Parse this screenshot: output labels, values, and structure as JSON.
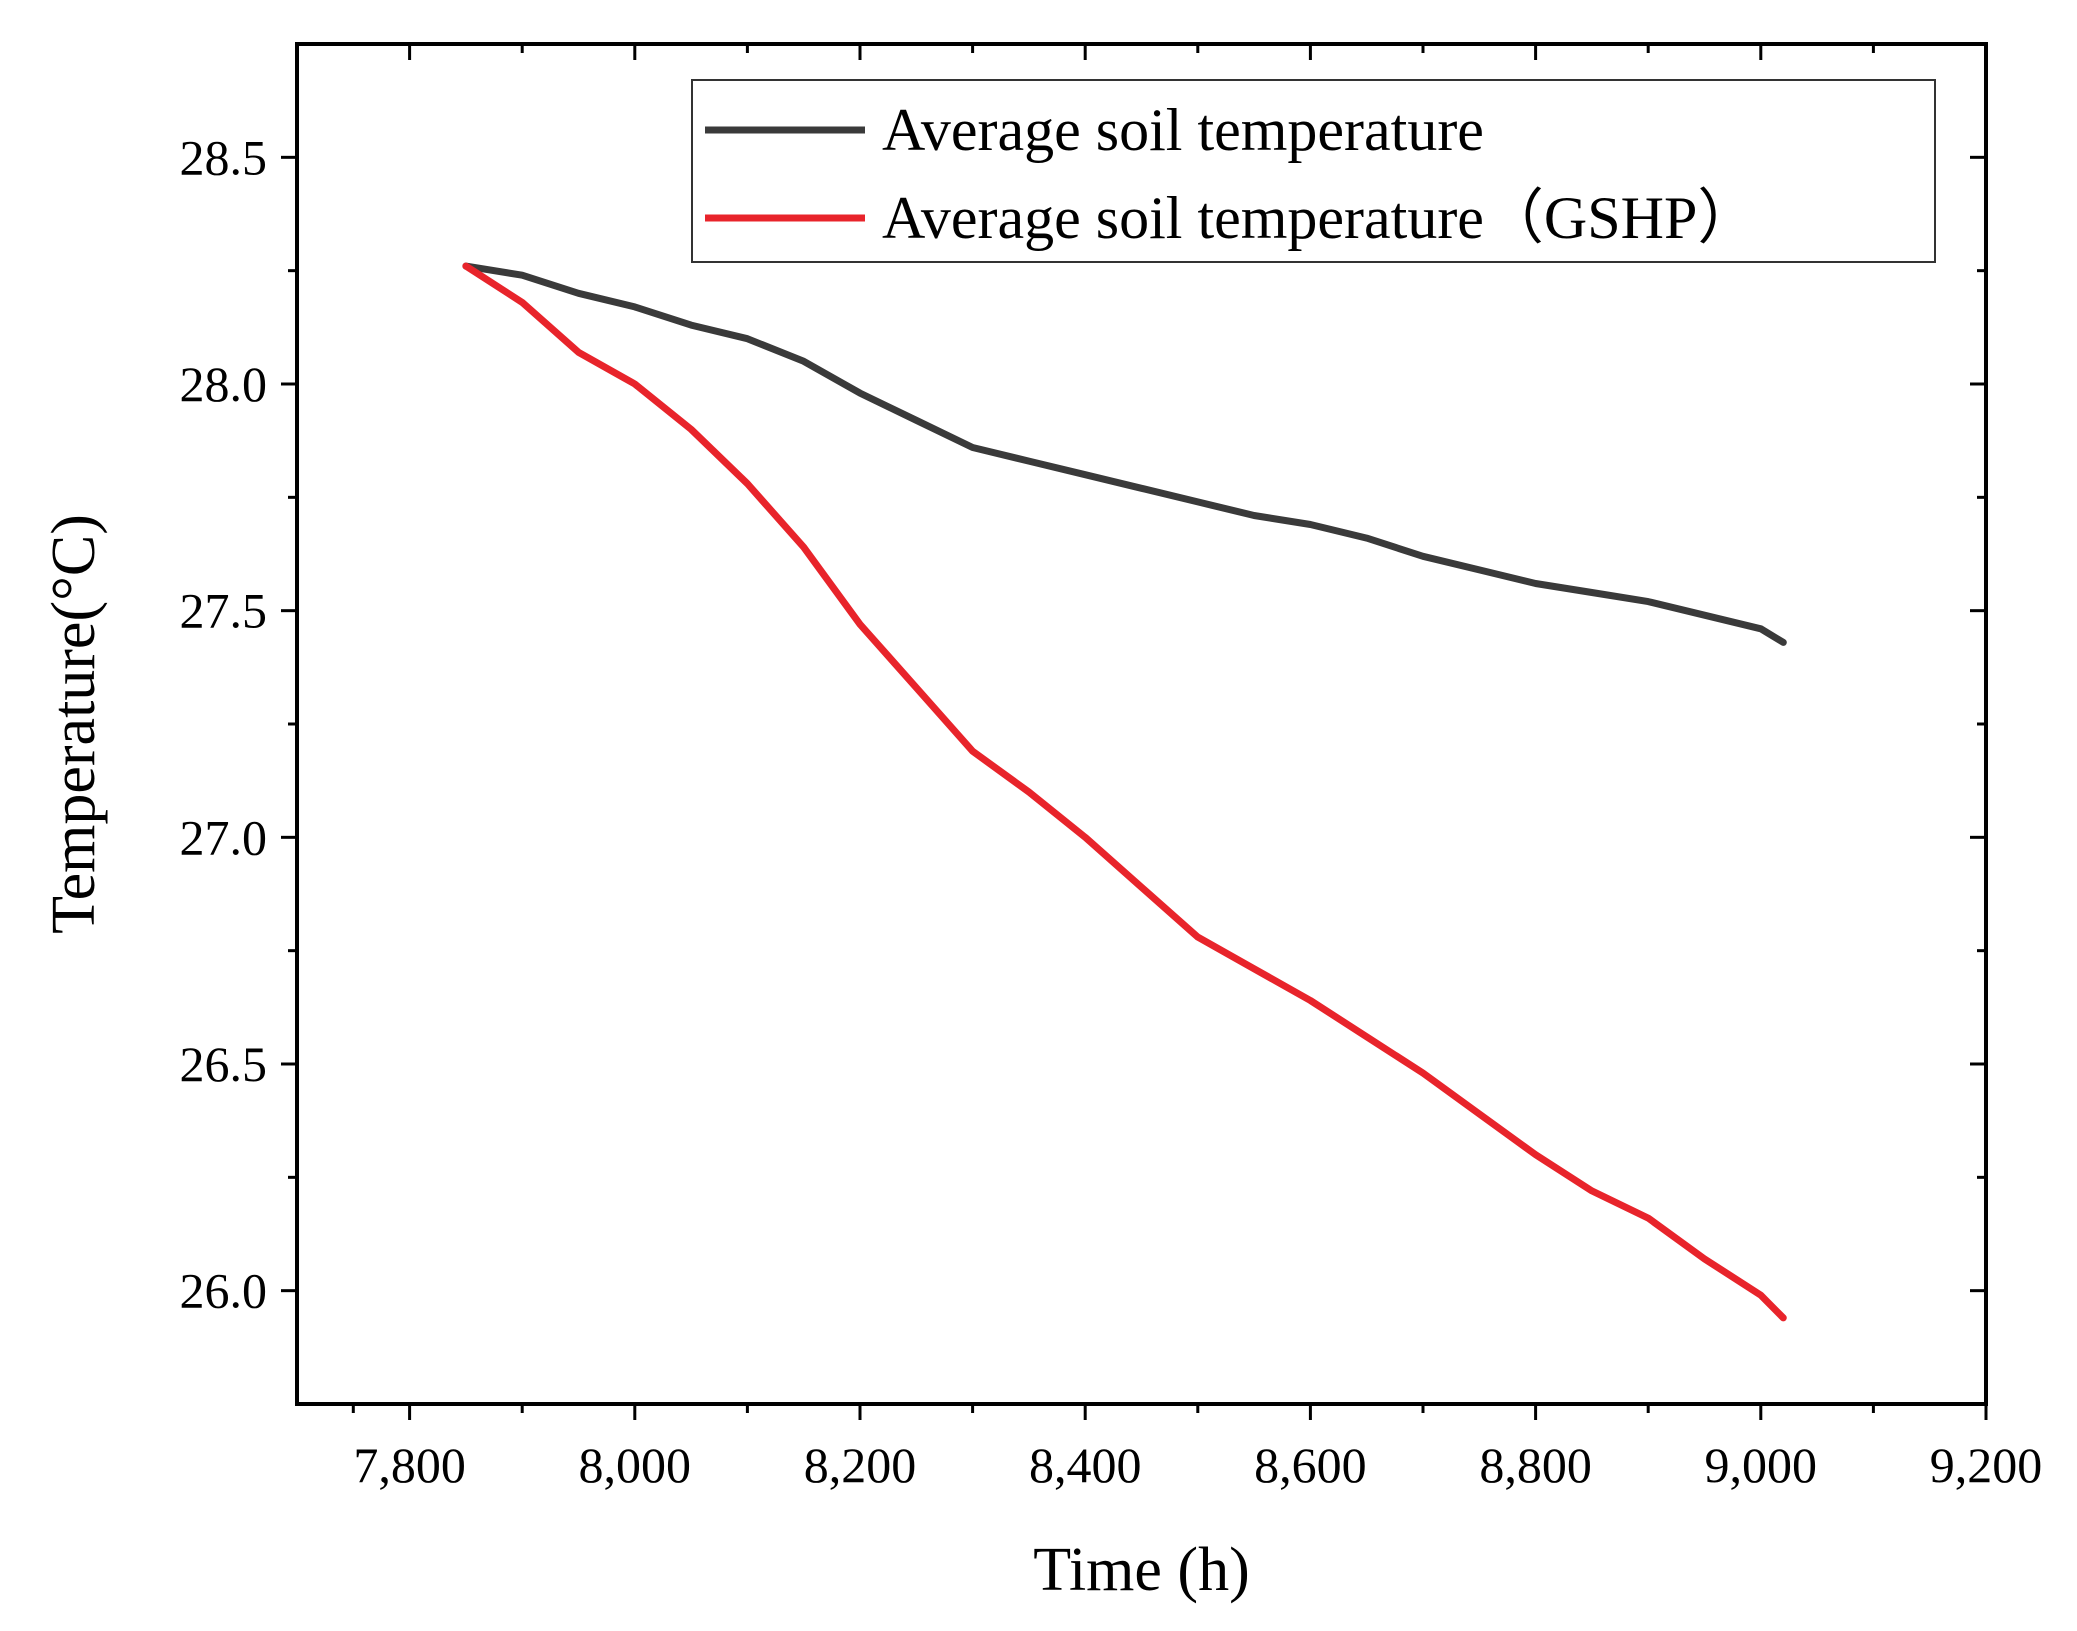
{
  "chart_data": {
    "type": "line",
    "title": "",
    "xlabel": "Time (h)",
    "ylabel": "Temperature(°C)",
    "xlim": [
      7700,
      9200
    ],
    "ylim": [
      25.75,
      28.75
    ],
    "xticks": [
      7800,
      8000,
      8200,
      8400,
      8600,
      8800,
      9000,
      9200
    ],
    "xtick_labels": [
      "7,800",
      "8,000",
      "8,200",
      "8,400",
      "8,600",
      "8,800",
      "9,000",
      "9,200"
    ],
    "yticks": [
      26.0,
      26.5,
      27.0,
      27.5,
      28.0,
      28.5
    ],
    "ytick_labels": [
      "26.0",
      "26.5",
      "27.0",
      "27.5",
      "28.0",
      "28.5"
    ],
    "grid": false,
    "legend_position": "top-right",
    "series": [
      {
        "name": "Average soil temperature",
        "color": "#3a3a3a",
        "x": [
          7850,
          7900,
          7950,
          8000,
          8050,
          8100,
          8150,
          8200,
          8250,
          8300,
          8350,
          8400,
          8450,
          8500,
          8550,
          8600,
          8650,
          8700,
          8750,
          8800,
          8850,
          8900,
          8950,
          9000,
          9020
        ],
        "y": [
          28.26,
          28.24,
          28.2,
          28.17,
          28.13,
          28.1,
          28.05,
          27.98,
          27.92,
          27.86,
          27.83,
          27.8,
          27.77,
          27.74,
          27.71,
          27.69,
          27.66,
          27.62,
          27.59,
          27.56,
          27.54,
          27.52,
          27.49,
          27.46,
          27.43
        ]
      },
      {
        "name": "Average soil temperature（GSHP）",
        "color": "#e8242b",
        "x": [
          7850,
          7900,
          7950,
          8000,
          8050,
          8100,
          8150,
          8200,
          8250,
          8300,
          8350,
          8400,
          8450,
          8500,
          8550,
          8600,
          8650,
          8700,
          8750,
          8800,
          8850,
          8900,
          8950,
          9000,
          9020
        ],
        "y": [
          28.26,
          28.18,
          28.07,
          28.0,
          27.9,
          27.78,
          27.64,
          27.47,
          27.33,
          27.19,
          27.1,
          27.0,
          26.89,
          26.78,
          26.71,
          26.64,
          26.56,
          26.48,
          26.39,
          26.3,
          26.22,
          26.16,
          26.07,
          25.99,
          25.94
        ]
      }
    ]
  }
}
